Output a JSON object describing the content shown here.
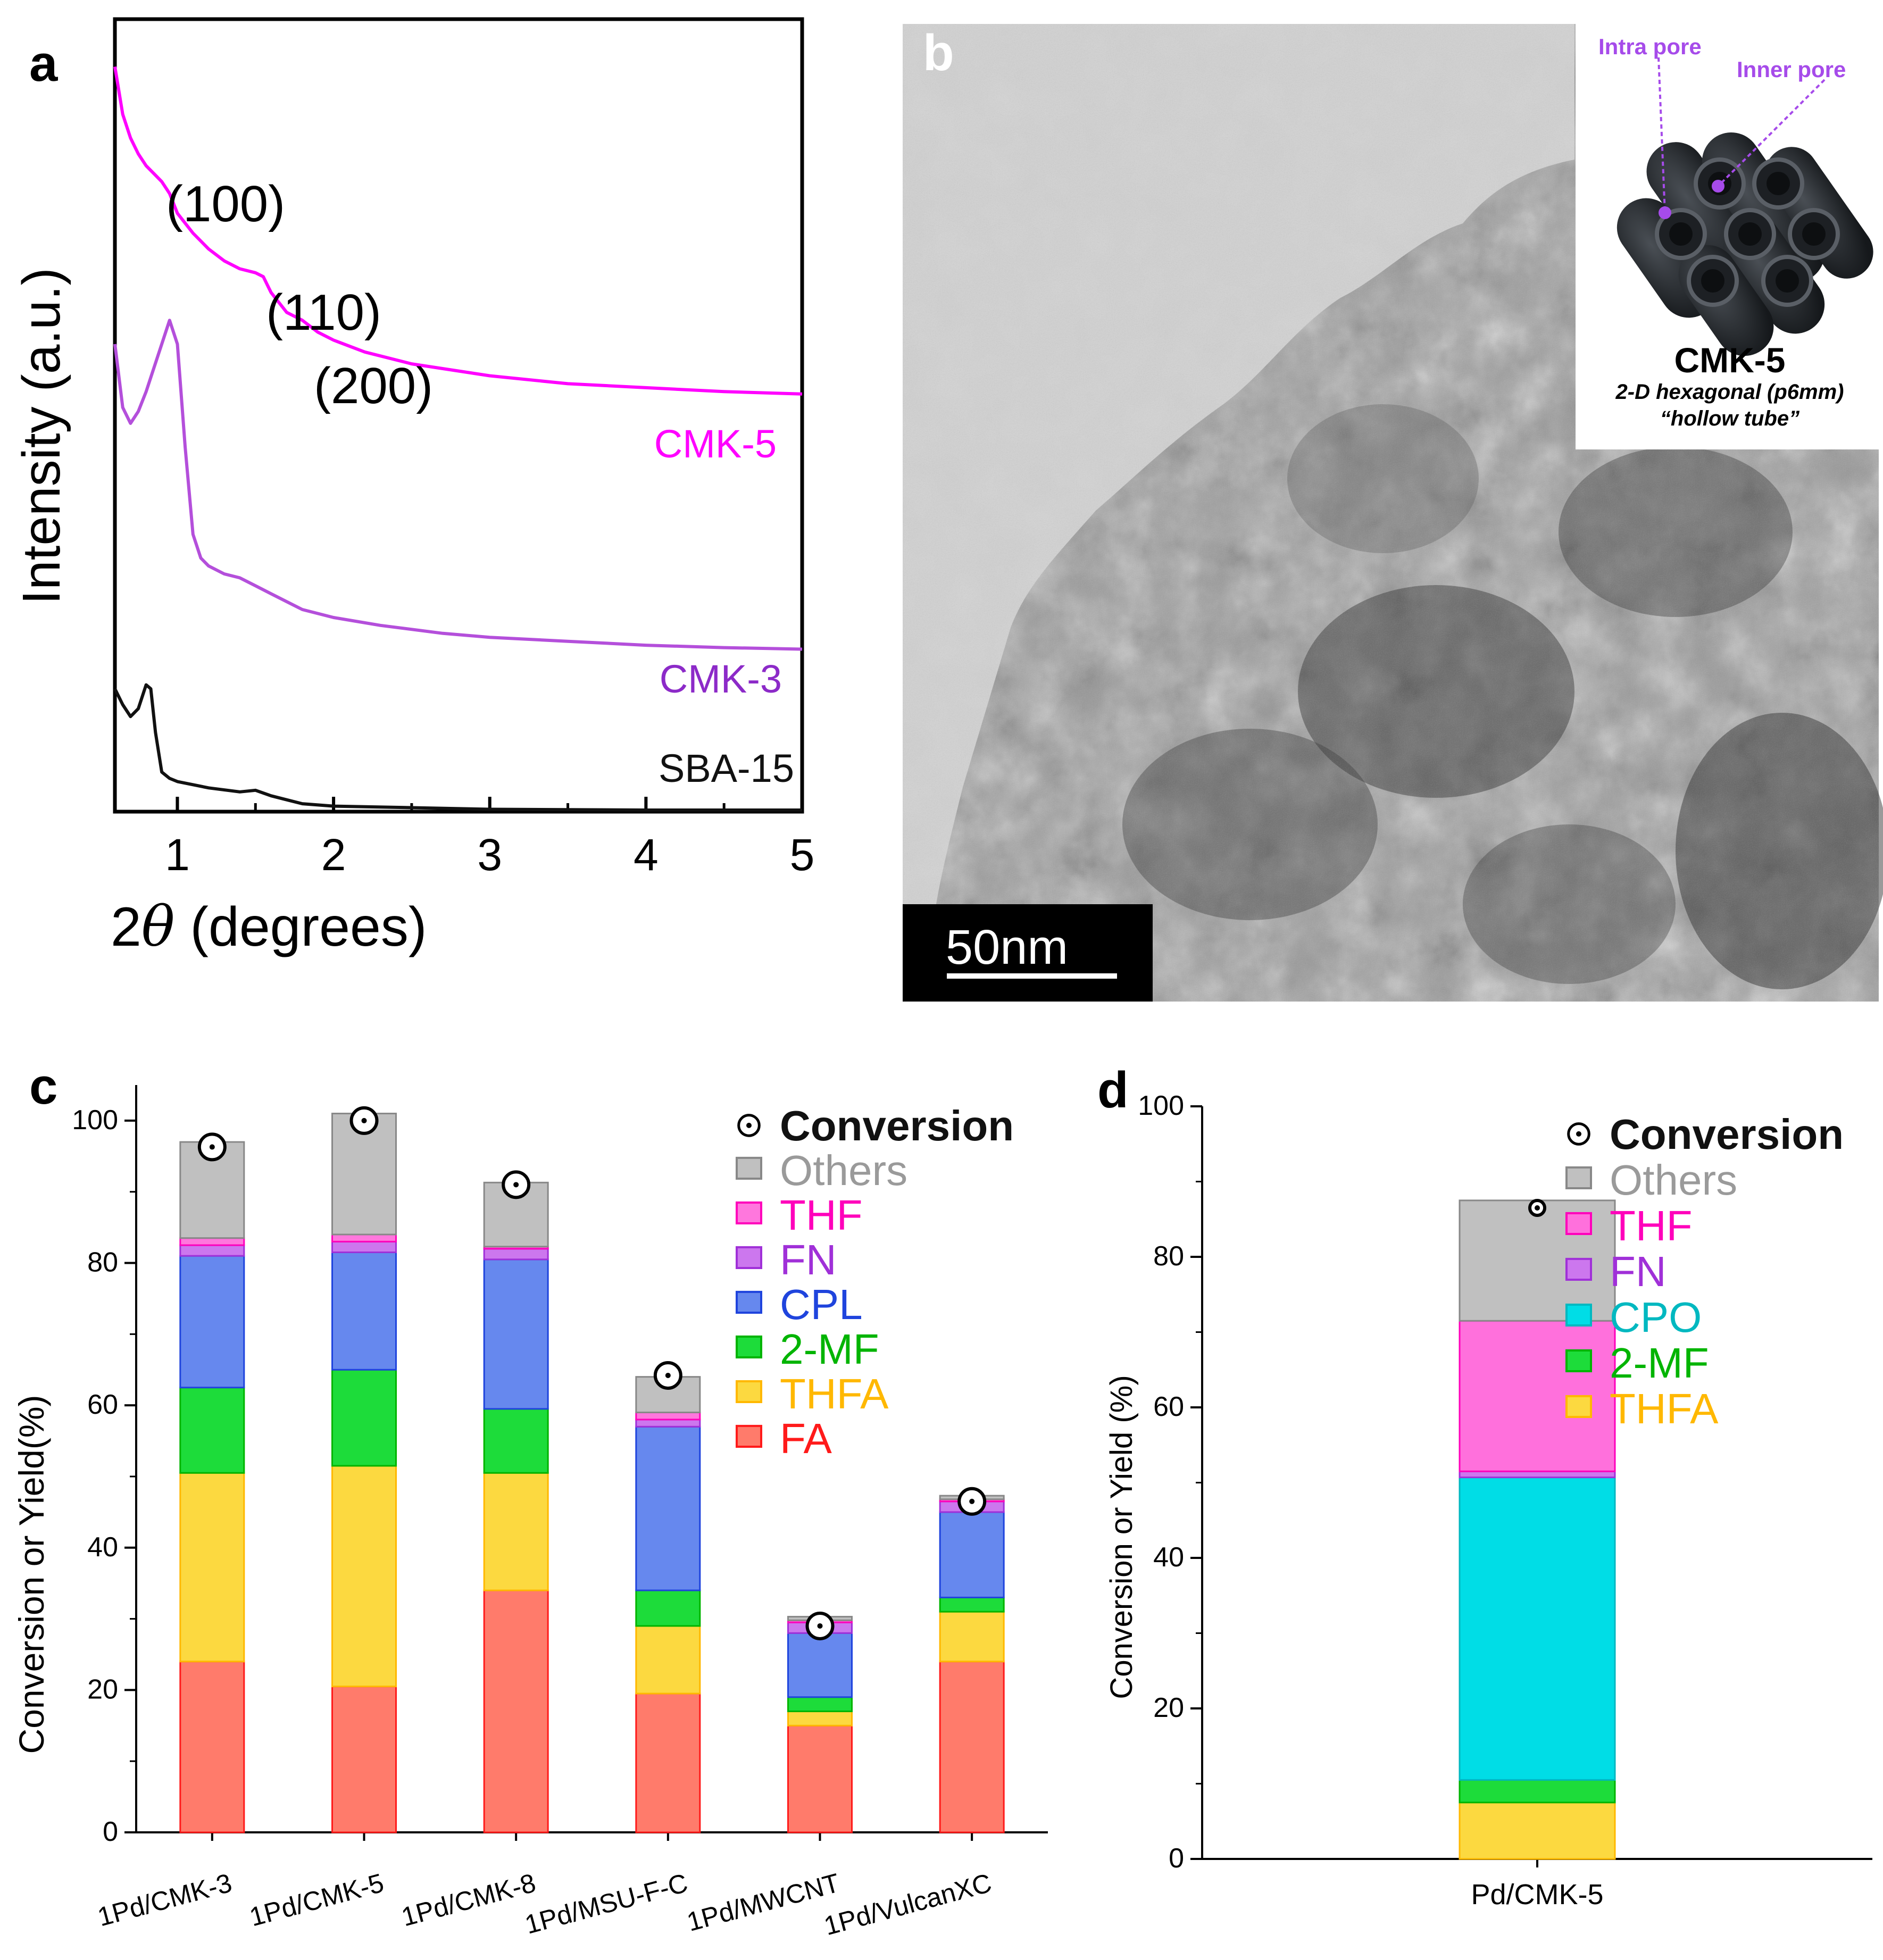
{
  "panels": {
    "a": {
      "label": "a"
    },
    "b": {
      "label": "b"
    },
    "c": {
      "label": "c"
    },
    "d": {
      "label": "d"
    }
  },
  "chart_data": [
    {
      "id": "a",
      "type": "line",
      "title": "",
      "xlabel_prefix": "2",
      "xlabel_symbol": "θ",
      "xlabel_suffix": " (degrees)",
      "ylabel": "Intensity (a.u.)",
      "xlim": [
        0.6,
        5.0
      ],
      "ylim": [
        0,
        10
      ],
      "xticks": [
        1,
        2,
        3,
        4,
        5
      ],
      "peak_labels": [
        "(100)",
        "(110)",
        "(200)"
      ],
      "series": [
        {
          "name": "CMK-5",
          "color": "#ff00ff",
          "x": [
            0.6,
            0.65,
            0.7,
            0.75,
            0.8,
            0.85,
            0.9,
            0.95,
            1.0,
            1.1,
            1.2,
            1.3,
            1.4,
            1.5,
            1.55,
            1.6,
            1.7,
            1.8,
            1.9,
            2.0,
            2.2,
            2.5,
            3.0,
            3.5,
            4.0,
            4.5,
            5.0
          ],
          "y": [
            9.4,
            8.8,
            8.5,
            8.3,
            8.15,
            8.05,
            7.95,
            7.8,
            7.55,
            7.3,
            7.1,
            6.95,
            6.85,
            6.8,
            6.75,
            6.55,
            6.3,
            6.2,
            6.05,
            5.95,
            5.8,
            5.65,
            5.5,
            5.4,
            5.35,
            5.3,
            5.27
          ]
        },
        {
          "name": "CMK-3",
          "color": "#b44fdb",
          "x": [
            0.6,
            0.65,
            0.7,
            0.75,
            0.8,
            0.85,
            0.9,
            0.95,
            1.0,
            1.05,
            1.1,
            1.15,
            1.2,
            1.3,
            1.4,
            1.5,
            1.6,
            1.7,
            1.8,
            2.0,
            2.3,
            2.7,
            3.0,
            3.5,
            4.0,
            4.5,
            5.0
          ],
          "y": [
            5.9,
            5.1,
            4.9,
            5.05,
            5.3,
            5.6,
            5.9,
            6.2,
            5.9,
            4.6,
            3.5,
            3.2,
            3.1,
            3.0,
            2.95,
            2.85,
            2.75,
            2.65,
            2.55,
            2.45,
            2.35,
            2.25,
            2.2,
            2.15,
            2.1,
            2.07,
            2.05
          ]
        },
        {
          "name": "SBA-15",
          "color": "#111111",
          "x": [
            0.6,
            0.65,
            0.7,
            0.75,
            0.8,
            0.83,
            0.86,
            0.9,
            0.95,
            1.0,
            1.2,
            1.4,
            1.5,
            1.6,
            1.7,
            1.8,
            2.0,
            2.5,
            3.0,
            4.0,
            5.0
          ],
          "y": [
            1.55,
            1.35,
            1.2,
            1.3,
            1.6,
            1.55,
            1.0,
            0.5,
            0.42,
            0.38,
            0.3,
            0.25,
            0.27,
            0.2,
            0.15,
            0.1,
            0.07,
            0.05,
            0.03,
            0.02,
            0.02
          ]
        }
      ]
    },
    {
      "id": "c",
      "type": "bar",
      "stacked": true,
      "ylabel": "Conversion or Yield(%)",
      "ylim": [
        0,
        105
      ],
      "yticks": [
        0,
        20,
        40,
        60,
        80,
        100
      ],
      "categories": [
        "1Pd/CMK-3",
        "1Pd/CMK-5",
        "1Pd/CMK-8",
        "1Pd/MSU-F-C",
        "1Pd/MWCNT",
        "1Pd/VulcanXC"
      ],
      "series": [
        {
          "name": "FA",
          "color": "#ff7b6b",
          "edge": "#ff1a1a",
          "values": [
            24,
            20.5,
            34,
            19.5,
            15,
            24
          ]
        },
        {
          "name": "THFA",
          "color": "#fcd940",
          "edge": "#ffb800",
          "values": [
            26.5,
            31,
            16.5,
            9.5,
            2,
            7
          ]
        },
        {
          "name": "2-MF",
          "color": "#1ddc3a",
          "edge": "#00b400",
          "values": [
            12,
            13.5,
            9,
            5,
            2,
            2
          ]
        },
        {
          "name": "CPL",
          "color": "#6688ee",
          "edge": "#1f44dd",
          "values": [
            18.5,
            16.5,
            21,
            23,
            9,
            12
          ]
        },
        {
          "name": "FN",
          "color": "#cc77ee",
          "edge": "#a030d8",
          "values": [
            1.5,
            1.5,
            1.5,
            1,
            1.5,
            1.5
          ]
        },
        {
          "name": "THF",
          "color": "#ff77dd",
          "edge": "#ff00bb",
          "values": [
            1,
            1,
            0.3,
            1,
            0.3,
            0.3
          ]
        },
        {
          "name": "Others",
          "color": "#c0c0c0",
          "edge": "#888888",
          "values": [
            13.5,
            17,
            9,
            5,
            0.5,
            0.5
          ]
        }
      ],
      "conversion": [
        96.3,
        100,
        91,
        64.2,
        29,
        46.5
      ],
      "legend_order": [
        "Conversion",
        "Others",
        "THF",
        "FN",
        "CPL",
        "2-MF",
        "THFA",
        "FA"
      ]
    },
    {
      "id": "d",
      "type": "bar",
      "stacked": true,
      "ylabel": "Conversion or Yield (%)",
      "ylim": [
        0,
        100
      ],
      "yticks": [
        0,
        20,
        40,
        60,
        80,
        100
      ],
      "categories": [
        "Pd/CMK-5"
      ],
      "series": [
        {
          "name": "THFA",
          "color": "#fcd940",
          "edge": "#ffb800",
          "values": [
            7.5
          ]
        },
        {
          "name": "2-MF",
          "color": "#1ddc3a",
          "edge": "#00b400",
          "values": [
            3
          ]
        },
        {
          "name": "CPO",
          "color": "#00dde6",
          "edge": "#00b8c0",
          "values": [
            40.2
          ]
        },
        {
          "name": "FN",
          "color": "#cc77ee",
          "edge": "#a030d8",
          "values": [
            0.8
          ]
        },
        {
          "name": "THF",
          "color": "#ff70dc",
          "edge": "#ff00bb",
          "values": [
            20
          ]
        },
        {
          "name": "Others",
          "color": "#c0c0c0",
          "edge": "#888888",
          "values": [
            16
          ]
        }
      ],
      "conversion": [
        86.5
      ],
      "legend_order": [
        "Conversion",
        "Others",
        "THF",
        "FN",
        "CPO",
        "2-MF",
        "THFA"
      ]
    }
  ],
  "tem": {
    "scalebar_label": "50nm",
    "inset": {
      "pore_label_1": "Intra pore",
      "pore_label_2": "Inner pore",
      "title": "CMK-5",
      "subtitle_1": "2-D hexagonal (p6mm)",
      "subtitle_2": "“hollow tube”"
    }
  }
}
